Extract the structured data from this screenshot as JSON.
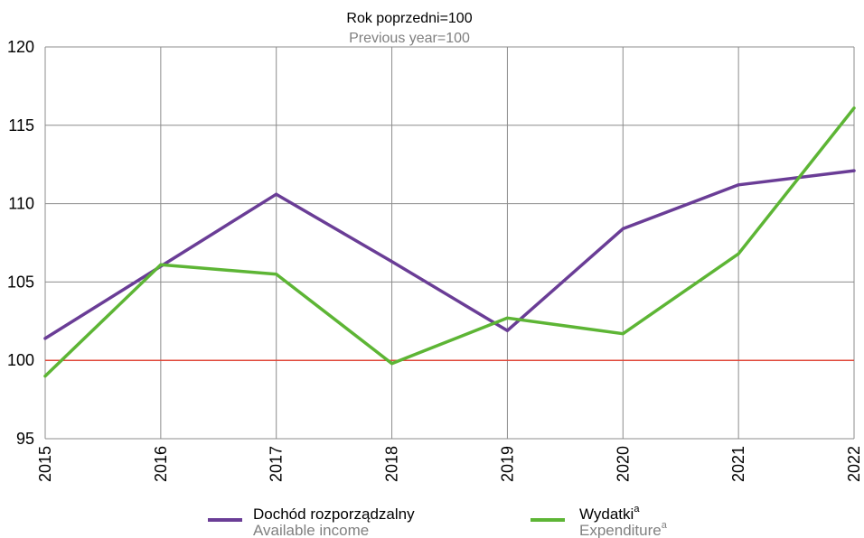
{
  "chart_data": {
    "type": "line",
    "title": "Rok poprzedni=100",
    "subtitle": "Previous year=100",
    "x": [
      "2015",
      "2016",
      "2017",
      "2018",
      "2019",
      "2020",
      "2021",
      "2022"
    ],
    "ylim": [
      95,
      120
    ],
    "yticks": [
      "95",
      "100",
      "105",
      "110",
      "115",
      "120"
    ],
    "grid": true,
    "legend_position": "bottom",
    "reference_line": {
      "value": 100,
      "color": "#e0483a"
    },
    "series": [
      {
        "name": "Dochód rozporządzalny",
        "name_en": "Available income",
        "superscript": "",
        "color": "#6a3d96",
        "values": [
          101.4,
          106.0,
          110.6,
          106.3,
          101.9,
          108.4,
          111.2,
          112.1
        ]
      },
      {
        "name": "Wydatki",
        "name_en": "Expenditure",
        "superscript": "a",
        "color": "#5db535",
        "values": [
          99.0,
          106.1,
          105.5,
          99.8,
          102.7,
          101.7,
          106.8,
          116.1
        ]
      }
    ]
  }
}
